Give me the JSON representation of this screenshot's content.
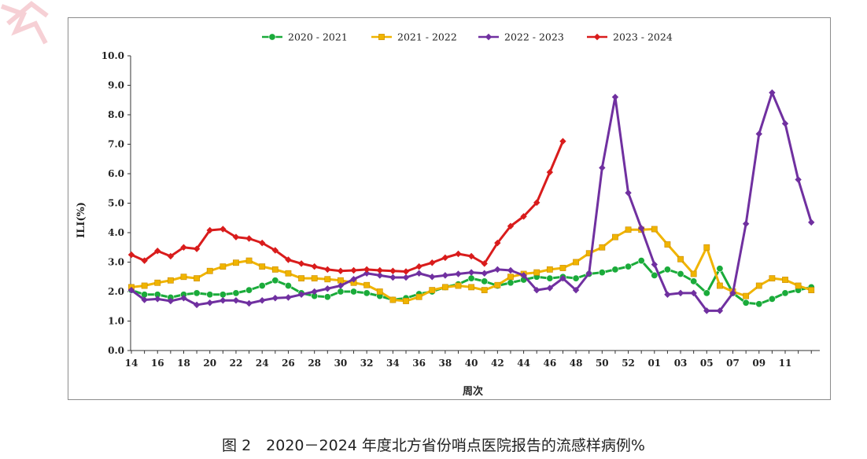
{
  "caption": "图 2　2020－2024 年度北方省份哨点医院报告的流感样病例%",
  "chart_data": {
    "type": "line",
    "title": "",
    "xlabel": "周次",
    "ylabel": "ILI(%)",
    "ylim": [
      0,
      10
    ],
    "y_ticks": [
      "0.0",
      "1.0",
      "2.0",
      "3.0",
      "4.0",
      "5.0",
      "6.0",
      "7.0",
      "8.0",
      "9.0",
      "10.0"
    ],
    "x_ticks": [
      "14",
      "16",
      "18",
      "20",
      "22",
      "24",
      "26",
      "28",
      "30",
      "32",
      "34",
      "36",
      "38",
      "40",
      "42",
      "44",
      "46",
      "48",
      "50",
      "52",
      "01",
      "03",
      "05",
      "07",
      "09",
      "11"
    ],
    "categories": [
      "14",
      "15",
      "16",
      "17",
      "18",
      "19",
      "20",
      "21",
      "22",
      "23",
      "24",
      "25",
      "26",
      "27",
      "28",
      "29",
      "30",
      "31",
      "32",
      "33",
      "34",
      "35",
      "36",
      "37",
      "38",
      "39",
      "40",
      "41",
      "42",
      "43",
      "44",
      "45",
      "46",
      "47",
      "48",
      "49",
      "50",
      "51",
      "52",
      "53",
      "01",
      "02",
      "03",
      "04",
      "05",
      "06",
      "07",
      "08",
      "09",
      "10",
      "11",
      "12",
      "13"
    ],
    "grid": false,
    "legend_position": "top",
    "series": [
      {
        "name": "2020 - 2021",
        "color": "#1aab3a",
        "marker": "circle",
        "values": [
          2.05,
          1.9,
          1.9,
          1.8,
          1.9,
          1.95,
          1.9,
          1.9,
          1.95,
          2.05,
          2.2,
          2.38,
          2.2,
          1.95,
          1.85,
          1.82,
          2.0,
          2.0,
          1.95,
          1.85,
          1.72,
          1.78,
          1.92,
          2.0,
          2.15,
          2.25,
          2.45,
          2.35,
          2.2,
          2.3,
          2.4,
          2.5,
          2.45,
          2.5,
          2.45,
          2.6,
          2.65,
          2.75,
          2.85,
          3.05,
          2.55,
          2.75,
          2.6,
          2.35,
          1.95,
          2.78,
          1.95,
          1.62,
          1.58,
          1.75,
          1.95,
          2.05,
          2.15
        ]
      },
      {
        "name": "2021 - 2022",
        "color": "#f0b400",
        "marker": "square",
        "values": [
          2.15,
          2.2,
          2.3,
          2.38,
          2.5,
          2.45,
          2.7,
          2.85,
          2.98,
          3.05,
          2.85,
          2.75,
          2.62,
          2.45,
          2.45,
          2.42,
          2.38,
          2.3,
          2.22,
          2.0,
          1.72,
          1.68,
          1.82,
          2.05,
          2.15,
          2.2,
          2.15,
          2.05,
          2.22,
          2.5,
          2.6,
          2.65,
          2.75,
          2.8,
          3.0,
          3.3,
          3.5,
          3.85,
          4.1,
          4.1,
          4.12,
          3.6,
          3.1,
          2.6,
          3.5,
          2.2,
          2.0,
          1.85,
          2.2,
          2.45,
          2.4,
          2.2,
          2.05
        ]
      },
      {
        "name": "2022 - 2023",
        "color": "#7030a0",
        "marker": "diamond",
        "values": [
          2.05,
          1.72,
          1.75,
          1.68,
          1.78,
          1.55,
          1.62,
          1.7,
          1.7,
          1.6,
          1.7,
          1.78,
          1.8,
          1.9,
          2.0,
          2.1,
          2.2,
          2.42,
          2.62,
          2.55,
          2.48,
          2.48,
          2.62,
          2.5,
          2.55,
          2.6,
          2.65,
          2.62,
          2.75,
          2.72,
          2.55,
          2.05,
          2.12,
          2.45,
          2.05,
          2.62,
          6.2,
          8.6,
          5.35,
          4.15,
          2.92,
          1.9,
          1.95,
          1.95,
          1.35,
          1.35,
          1.95,
          4.3,
          7.35,
          8.75,
          7.7,
          5.8,
          4.35
        ]
      },
      {
        "name": "2023 - 2024",
        "color": "#d91c1c",
        "marker": "diamond",
        "values": [
          3.25,
          3.05,
          3.38,
          3.2,
          3.5,
          3.45,
          4.08,
          4.12,
          3.85,
          3.8,
          3.65,
          3.4,
          3.08,
          2.95,
          2.85,
          2.75,
          2.7,
          2.72,
          2.75,
          2.72,
          2.7,
          2.68,
          2.85,
          2.98,
          3.15,
          3.28,
          3.2,
          2.95,
          3.65,
          4.22,
          4.55,
          5.02,
          6.05,
          7.1,
          null,
          null,
          null,
          null,
          null,
          null,
          null,
          null,
          null,
          null,
          null,
          null,
          null,
          null,
          null,
          null,
          null,
          null,
          null
        ]
      }
    ]
  }
}
